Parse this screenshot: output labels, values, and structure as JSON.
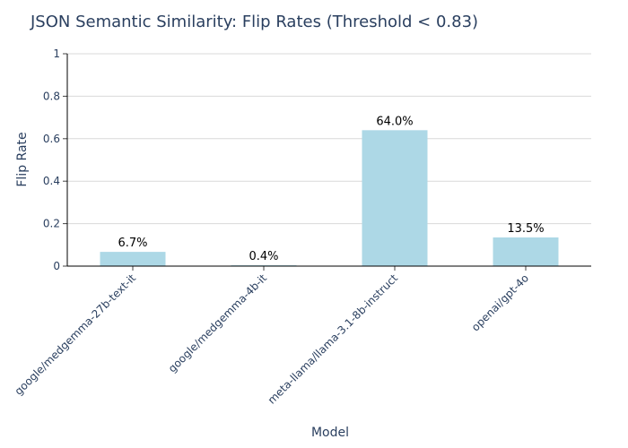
{
  "chart_data": {
    "type": "bar",
    "title": "JSON Semantic Similarity: Flip Rates (Threshold < 0.83)",
    "xlabel": "Model",
    "ylabel": "Flip Rate",
    "categories": [
      "google/medgemma-27b-text-it",
      "google/medgemma-4b-it",
      "meta-llama/llama-3.1-8b-instruct",
      "openai/gpt-4o"
    ],
    "values": [
      0.067,
      0.004,
      0.64,
      0.135
    ],
    "data_labels": [
      "6.7%",
      "0.4%",
      "64.0%",
      "13.5%"
    ],
    "ylim": [
      0,
      1
    ],
    "yticks": [
      0,
      0.2,
      0.4,
      0.6,
      0.8,
      1
    ],
    "ytick_labels": [
      "0",
      "0.2",
      "0.4",
      "0.6",
      "0.8",
      "1"
    ],
    "grid": true,
    "bar_color": "#add8e6",
    "text_color": "#2a3f5f"
  }
}
